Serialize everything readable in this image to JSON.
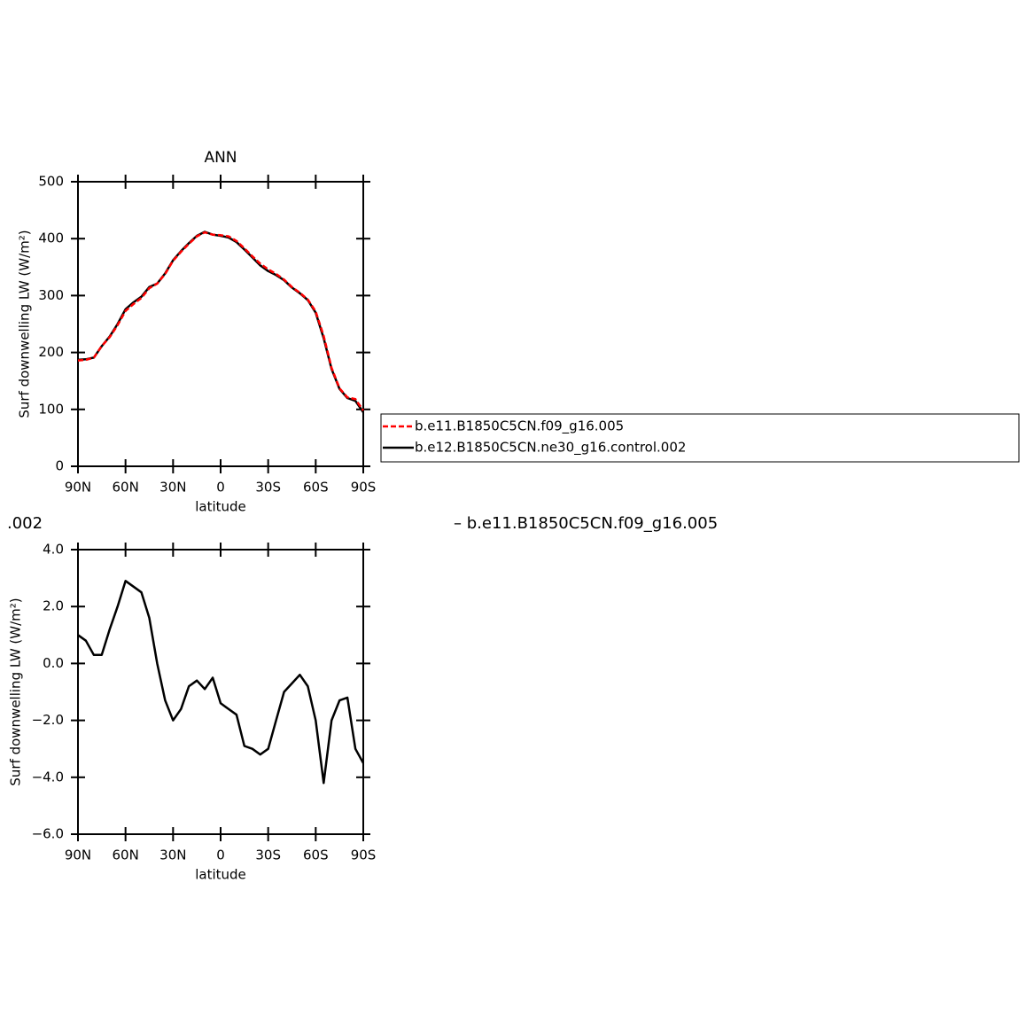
{
  "chart_data": [
    {
      "type": "line",
      "title": "ANN",
      "y_label": "Surf downwelling LW (W/m²)",
      "x_label": "latitude",
      "x": [
        90,
        85,
        80,
        75,
        70,
        65,
        60,
        55,
        50,
        45,
        40,
        35,
        30,
        25,
        20,
        15,
        10,
        5,
        0,
        -5,
        -10,
        -15,
        -20,
        -25,
        -30,
        -35,
        -40,
        -45,
        -50,
        -55,
        -60,
        -65,
        -70,
        -75,
        -80,
        -85,
        -90
      ],
      "series": [
        {
          "name": "b.e11.B1850C5CN.f09_g16.005",
          "color": "#ff0000",
          "style": "dashed",
          "values": [
            186,
            187,
            191,
            211,
            227,
            248,
            273,
            285,
            296,
            313,
            321,
            338,
            361,
            377,
            391,
            404,
            411,
            407,
            406,
            404,
            396,
            383,
            369,
            356,
            346,
            338,
            328,
            315,
            305,
            293,
            272,
            229,
            173,
            137,
            121,
            118,
            98
          ]
        },
        {
          "name": "b.e12.B1850C5CN.ne30_g16.control.002",
          "color": "#000000",
          "style": "solid",
          "values": [
            187,
            188,
            191,
            211,
            228,
            250,
            276,
            288,
            298,
            315,
            321,
            339,
            362,
            378,
            392,
            405,
            412,
            407,
            405,
            402,
            394,
            381,
            367,
            353,
            343,
            336,
            327,
            314,
            304,
            292,
            270,
            225,
            171,
            136,
            120,
            115,
            95
          ]
        }
      ],
      "xlim": [
        90,
        -90
      ],
      "xticks": [
        {
          "value": 90,
          "label": "90N"
        },
        {
          "value": 60,
          "label": "60N"
        },
        {
          "value": 30,
          "label": "30N"
        },
        0,
        {
          "value": -30,
          "label": "30S"
        },
        {
          "value": -60,
          "label": "60S"
        },
        {
          "value": -90,
          "label": "90S"
        }
      ],
      "ylim": [
        0,
        500
      ],
      "yticks": [
        0,
        100,
        200,
        300,
        400,
        500
      ],
      "legend": "right"
    },
    {
      "type": "line",
      "y_label": "Surf downwelling LW (W/m²)",
      "x_label": "latitude",
      "x": [
        90,
        85,
        80,
        75,
        70,
        65,
        60,
        55,
        50,
        45,
        40,
        35,
        30,
        25,
        20,
        15,
        10,
        5,
        0,
        -5,
        -10,
        -15,
        -20,
        -25,
        -30,
        -35,
        -40,
        -45,
        -50,
        -55,
        -60,
        -65,
        -70,
        -75,
        -80,
        -85,
        -90
      ],
      "series": [
        {
          "color": "#000000",
          "style": "solid",
          "values": [
            1.0,
            0.8,
            0.3,
            0.3,
            1.2,
            2.0,
            2.9,
            2.7,
            2.5,
            1.6,
            0.0,
            -1.3,
            -2.0,
            -1.6,
            -0.8,
            -0.6,
            -0.9,
            -0.5,
            -1.4,
            -1.6,
            -1.8,
            -2.9,
            -3.0,
            -3.2,
            -3.0,
            -2.0,
            -1.0,
            -0.7,
            -0.4,
            -0.8,
            -2.0,
            -4.2,
            -2.0,
            -1.3,
            -1.2,
            -3.0,
            -3.5
          ]
        }
      ],
      "xlim": [
        90,
        -90
      ],
      "xticks": [
        {
          "value": 90,
          "label": "90N"
        },
        {
          "value": 60,
          "label": "60N"
        },
        {
          "value": 30,
          "label": "30N"
        },
        0,
        {
          "value": -30,
          "label": "30S"
        },
        {
          "value": -60,
          "label": "60S"
        },
        {
          "value": -90,
          "label": "90S"
        }
      ],
      "ylim": [
        -6,
        4
      ],
      "yticks": [
        {
          "value": -6,
          "label": "−6.0"
        },
        {
          "value": -4,
          "label": "−4.0"
        },
        {
          "value": -2,
          "label": "−2.0"
        },
        {
          "value": 0,
          "label": "0.0"
        },
        {
          "value": 2,
          "label": "2.0"
        },
        {
          "value": 4,
          "label": "4.0"
        }
      ]
    }
  ],
  "annotations": [
    ".002",
    "– b.e11.B1850C5CN.f09_g16.005"
  ]
}
